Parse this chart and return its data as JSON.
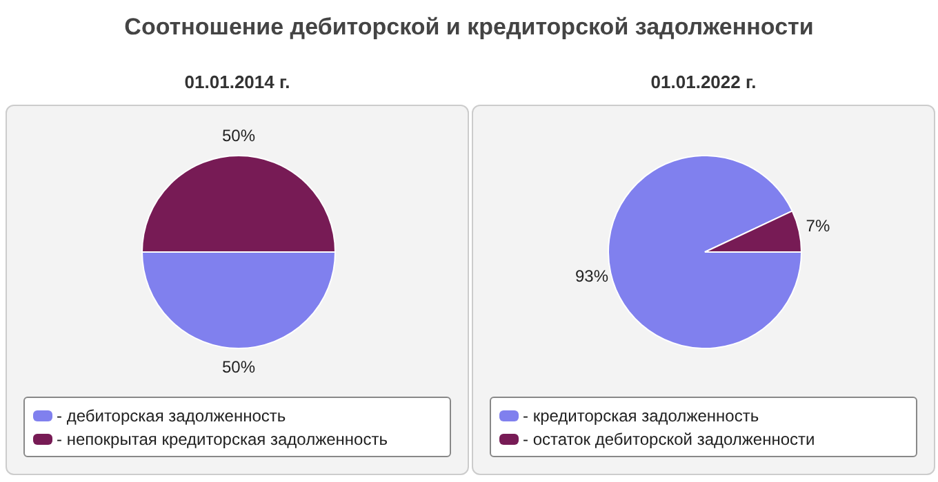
{
  "chart_data": [
    {
      "type": "pie",
      "title": "Соотношение дебиторской и кредиторской задолженности",
      "subtitle": "01.01.2014 г.",
      "categories": [
        "- дебиторская задолженность",
        "- непокрытая кредиторская задолженность"
      ],
      "values": [
        50,
        50
      ],
      "value_labels": [
        "50%",
        "50%"
      ],
      "colors": [
        "#8080ee",
        "#771b55"
      ],
      "legend": "bottom"
    },
    {
      "type": "pie",
      "subtitle": "01.01.2022 г.",
      "categories": [
        "- кредиторская задолженность",
        "- остаток дебиторской задолженности"
      ],
      "values": [
        93,
        7
      ],
      "value_labels": [
        "93%",
        "7%"
      ],
      "colors": [
        "#8080ee",
        "#771b55"
      ],
      "legend": "bottom"
    }
  ]
}
